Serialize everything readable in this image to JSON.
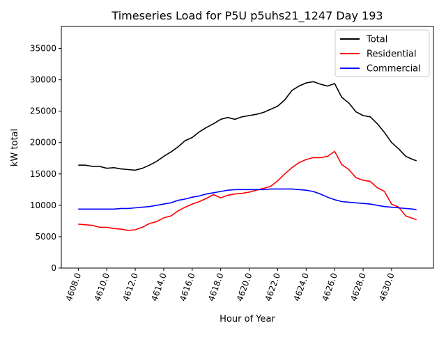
{
  "chart_data": {
    "type": "line",
    "title": "Timeseries Load for P5U p5uhs21_1247  Day 193",
    "xlabel": "Hour of Year",
    "ylabel": "kW total",
    "xlim": [
      4606.81,
      4632.94
    ],
    "ylim": [
      0,
      38500
    ],
    "xticks": [
      4608,
      4610,
      4612,
      4614,
      4616,
      4618,
      4620,
      4622,
      4624,
      4626,
      4628,
      4630
    ],
    "xtick_labels": [
      "4608.0",
      "4610.0",
      "4612.0",
      "4614.0",
      "4616.0",
      "4618.0",
      "4620.0",
      "4622.0",
      "4624.0",
      "4626.0",
      "4628.0",
      "4630.0"
    ],
    "yticks": [
      0,
      5000,
      10000,
      15000,
      20000,
      25000,
      30000,
      35000
    ],
    "ytick_labels": [
      "0",
      "5000",
      "10000",
      "15000",
      "20000",
      "25000",
      "30000",
      "35000"
    ],
    "grid": false,
    "legend_position": "top-right",
    "x": [
      4608,
      4608.5,
      4609,
      4609.5,
      4610,
      4610.5,
      4611,
      4611.5,
      4612,
      4612.5,
      4613,
      4613.5,
      4614,
      4614.5,
      4615,
      4615.5,
      4616,
      4616.5,
      4617,
      4617.5,
      4618,
      4618.5,
      4619,
      4619.5,
      4620,
      4620.5,
      4621,
      4621.5,
      4622,
      4622.5,
      4623,
      4623.5,
      4624,
      4624.5,
      4625,
      4625.5,
      4626,
      4626.5,
      4627,
      4627.5,
      4628,
      4628.5,
      4629,
      4629.5,
      4630,
      4630.5,
      4631,
      4631.5,
      4631.75
    ],
    "series": [
      {
        "name": "Total",
        "color": "#000000",
        "values": [
          16400,
          16400,
          16200,
          16200,
          15900,
          16000,
          15800,
          15700,
          15600,
          15900,
          16400,
          17000,
          17800,
          18500,
          19300,
          20300,
          20800,
          21700,
          22400,
          23000,
          23700,
          24000,
          23700,
          24100,
          24300,
          24500,
          24800,
          25300,
          25800,
          26800,
          28300,
          29000,
          29500,
          29700,
          29300,
          29000,
          29400,
          27200,
          26300,
          24900,
          24300,
          24100,
          23000,
          21600,
          20000,
          19000,
          17800,
          17300,
          17100
        ]
      },
      {
        "name": "Residential",
        "color": "#ff0000",
        "values": [
          7000,
          6900,
          6800,
          6500,
          6500,
          6300,
          6200,
          6000,
          6100,
          6500,
          7100,
          7400,
          8000,
          8300,
          9100,
          9700,
          10200,
          10600,
          11100,
          11700,
          11200,
          11600,
          11800,
          11900,
          12100,
          12400,
          12700,
          13000,
          13900,
          15000,
          16000,
          16800,
          17300,
          17600,
          17600,
          17800,
          18600,
          16500,
          15700,
          14400,
          14000,
          13800,
          12800,
          12200,
          10200,
          9700,
          8300,
          7900,
          7700
        ]
      },
      {
        "name": "Commercial",
        "color": "#0000ff",
        "values": [
          9400,
          9400,
          9400,
          9400,
          9400,
          9400,
          9500,
          9500,
          9600,
          9700,
          9800,
          10000,
          10200,
          10400,
          10800,
          11000,
          11300,
          11500,
          11800,
          12000,
          12200,
          12400,
          12500,
          12500,
          12500,
          12500,
          12500,
          12600,
          12600,
          12600,
          12600,
          12500,
          12400,
          12200,
          11800,
          11300,
          10900,
          10600,
          10500,
          10400,
          10300,
          10200,
          10000,
          9800,
          9700,
          9600,
          9500,
          9400,
          9300
        ]
      }
    ]
  }
}
